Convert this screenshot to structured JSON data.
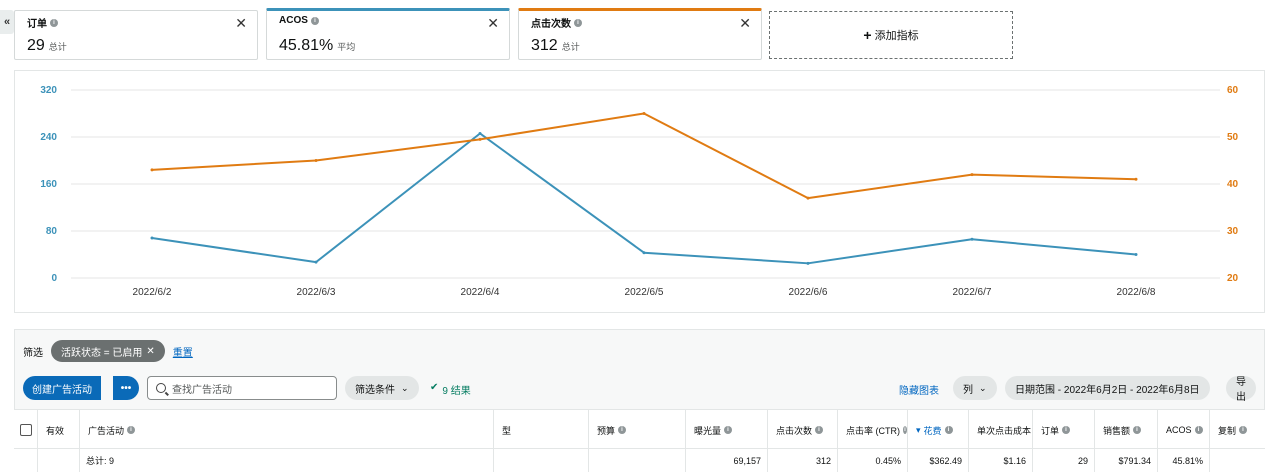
{
  "colors": {
    "acos": "#3c92b9",
    "clicks": "#e07b12",
    "primary": "#0a6ab8",
    "link": "#0066c0"
  },
  "collapse_label": "«",
  "metrics": [
    {
      "title": "订单",
      "value": "29",
      "sub": "总计",
      "close": "✕"
    },
    {
      "title": "ACOS",
      "value": "45.81%",
      "sub": "平均",
      "close": "✕"
    },
    {
      "title": "点击次数",
      "value": "312",
      "sub": "总计",
      "close": "✕"
    }
  ],
  "add_metric": {
    "plus": "+",
    "label": "添加指标"
  },
  "chart_data": {
    "type": "line",
    "categories": [
      "2022/6/2",
      "2022/6/3",
      "2022/6/4",
      "2022/6/5",
      "2022/6/6",
      "2022/6/7",
      "2022/6/8"
    ],
    "series": [
      {
        "name": "ACOS",
        "axis": "left",
        "color": "#3c92b9",
        "values": [
          68,
          27,
          246,
          43,
          25,
          66,
          40
        ]
      },
      {
        "name": "点击次数",
        "axis": "right",
        "color": "#e07b12",
        "values": [
          43,
          45,
          49.5,
          55,
          37,
          42,
          41
        ]
      }
    ],
    "y_left": {
      "min": 0,
      "max": 320,
      "ticks": [
        0,
        80,
        160,
        240,
        320
      ]
    },
    "y_right": {
      "min": 20,
      "max": 60,
      "ticks": [
        20,
        30,
        40,
        50,
        60
      ]
    },
    "grid": true
  },
  "filters": {
    "label": "筛选",
    "chip_text": "活跃状态 = 已启用",
    "chip_close": "✕",
    "reset": "重置"
  },
  "toolbar": {
    "create": "创建广告活动",
    "more": "•••",
    "search_placeholder": "查找广告活动",
    "filter_conditions": "筛选条件",
    "results_check": "✔",
    "results": "9 结果",
    "hide_chart": "隐藏图表",
    "columns": "列",
    "date_range": "日期范围 - 2022年6月2日 - 2022年6月8日",
    "export": "导出",
    "chevron": "⌄"
  },
  "table": {
    "headers": [
      "有效",
      "广告活动",
      "型",
      "预算",
      "曝光量",
      "点击次数",
      "点击率 (CTR)",
      "花费",
      "单次点击成本",
      "订单",
      "销售额",
      "ACOS",
      "复制"
    ],
    "sort_arrow": "▾",
    "totals": {
      "label": "总计: 9",
      "impressions": "69,157",
      "clicks": "312",
      "ctr": "0.45%",
      "spend": "$362.49",
      "cpc": "$1.16",
      "orders": "29",
      "sales": "$791.34",
      "acos": "45.81%"
    }
  }
}
